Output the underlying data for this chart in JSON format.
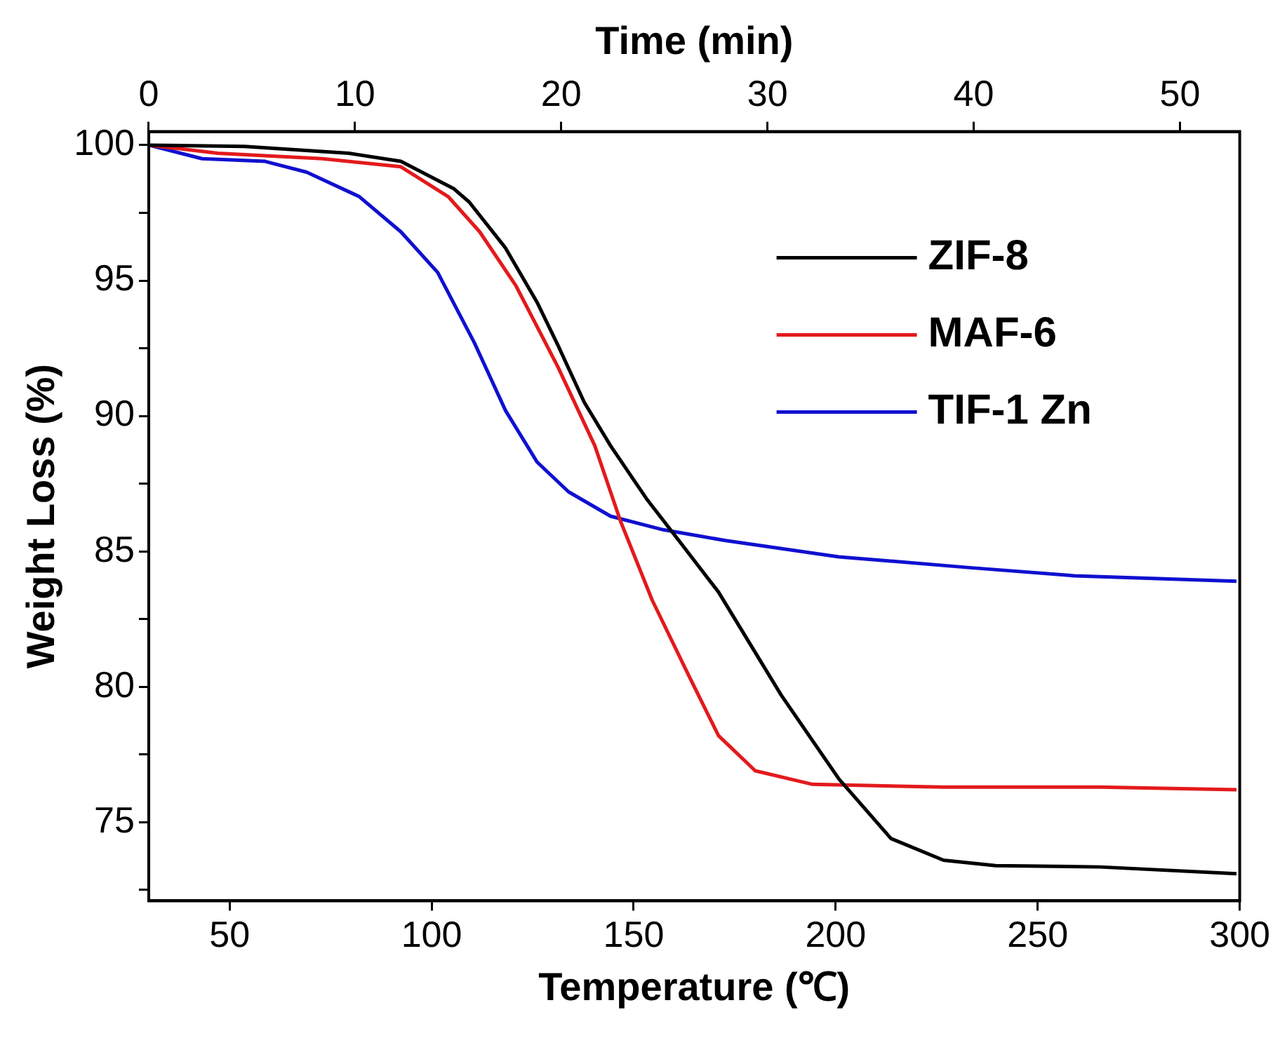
{
  "chart_data": {
    "type": "line",
    "xlabel": "Temperature (℃)",
    "ylabel": "Weight Loss (%)",
    "x2label": "Time (min)",
    "xlim": [
      30,
      300
    ],
    "xticks": [
      50,
      100,
      150,
      200,
      250,
      300
    ],
    "x2lim": [
      0,
      52.9
    ],
    "x2ticks": [
      0,
      10,
      20,
      30,
      40,
      50
    ],
    "ylim": [
      72.1,
      100.5
    ],
    "yticks": [
      {
        "value": 72.5,
        "label": null
      },
      75,
      {
        "value": 77.5,
        "label": null
      },
      80,
      {
        "value": 82.5,
        "label": null
      },
      85,
      {
        "value": 87.5,
        "label": null
      },
      90,
      {
        "value": 92.5,
        "label": null
      },
      95,
      {
        "value": 97.5,
        "label": null
      },
      100
    ],
    "grid": false,
    "legend": "top right",
    "marker": "none",
    "line_style": "solid",
    "series": [
      {
        "name": "ZIF-8",
        "color": "#000000",
        "x": [
          30,
          53.6,
          79.5,
          92.4,
          105.4,
          109.3,
          118.3,
          126.1,
          131.3,
          137.8,
          144.3,
          153.4,
          161.2,
          171,
          186.5,
          200.8,
          213.7,
          226.7,
          239.6,
          265.5,
          299.2
        ],
        "values": [
          100,
          99.95,
          99.7,
          99.4,
          98.4,
          97.9,
          96.2,
          94.2,
          92.6,
          90.5,
          88.9,
          86.9,
          85.4,
          83.5,
          79.7,
          76.6,
          74.4,
          73.6,
          73.4,
          73.35,
          73.1
        ]
      },
      {
        "name": "MAF-6",
        "color": "#e31a1c",
        "x": [
          30,
          47.1,
          73,
          92.4,
          104.1,
          111.9,
          120.9,
          131.3,
          140.4,
          146.8,
          154.6,
          163.7,
          171,
          180.1,
          194.3,
          226.7,
          265.5,
          299.2
        ],
        "values": [
          100,
          99.7,
          99.5,
          99.2,
          98.1,
          96.8,
          94.8,
          91.8,
          88.9,
          86.1,
          83.2,
          80.4,
          78.2,
          76.9,
          76.4,
          76.3,
          76.3,
          76.2
        ]
      },
      {
        "name": "TIF-1 Zn",
        "color": "#1010d0",
        "x": [
          30,
          43.2,
          58.8,
          69.1,
          82.1,
          92.4,
          101.5,
          110.6,
          118.3,
          126.1,
          133.9,
          144.3,
          157.3,
          172.8,
          200.8,
          233.2,
          259.1,
          299.2
        ],
        "values": [
          100,
          99.5,
          99.4,
          99.0,
          98.1,
          96.8,
          95.3,
          92.7,
          90.2,
          88.3,
          87.2,
          86.3,
          85.8,
          85.4,
          84.8,
          84.4,
          84.1,
          83.9
        ]
      }
    ]
  }
}
